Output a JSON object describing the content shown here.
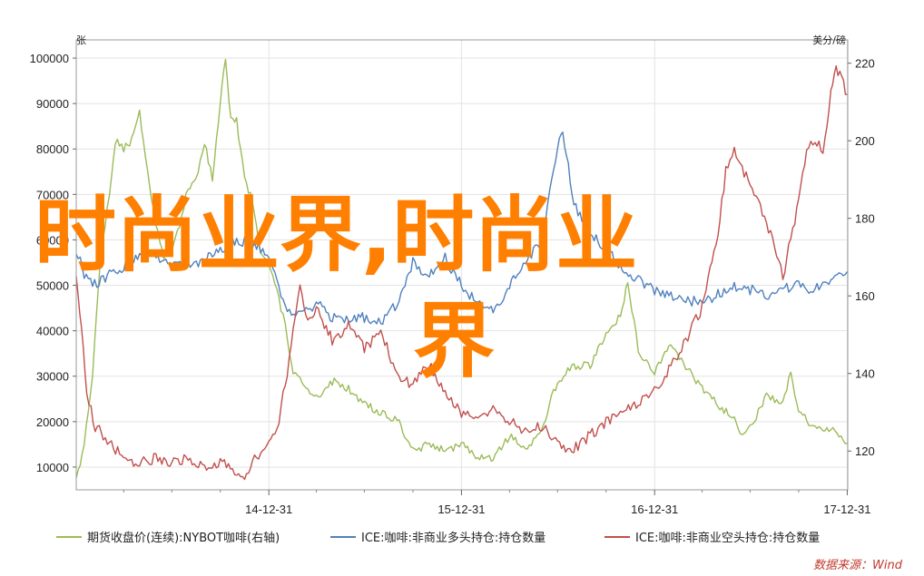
{
  "chart_data": {
    "type": "line",
    "left_axis_unit": "张",
    "right_axis_unit": "美分/磅",
    "left_ticks": [
      100000,
      90000,
      80000,
      70000,
      60000,
      50000,
      40000,
      30000,
      20000,
      10000
    ],
    "right_ticks": [
      220,
      200,
      180,
      160,
      140,
      120
    ],
    "ylim_left": [
      5000,
      104000
    ],
    "ylim_right": [
      110,
      226
    ],
    "x_ticks": [
      "14-12-31",
      "15-12-31",
      "16-12-31",
      "17-12-31"
    ],
    "x_range": [
      "2013-12-31",
      "2018-01-01"
    ],
    "grid": true,
    "legend_placement": "bottom",
    "source": "数据来源：Wind",
    "colors": {
      "price": "#9bbb59",
      "long": "#4f81bd",
      "short": "#c0504d"
    },
    "series": [
      {
        "name": "期货收盘价(连续):NYBOT咖啡(右轴)",
        "axis": "right",
        "color": "#9bbb59",
        "points": [
          [
            "2013-12-31",
            112
          ],
          [
            "2014-01-15",
            122
          ],
          [
            "2014-01-31",
            140
          ],
          [
            "2014-02-15",
            170
          ],
          [
            "2014-02-28",
            182
          ],
          [
            "2014-03-15",
            200
          ],
          [
            "2014-03-31",
            198
          ],
          [
            "2014-04-15",
            200
          ],
          [
            "2014-04-30",
            208
          ],
          [
            "2014-05-15",
            192
          ],
          [
            "2014-05-31",
            178
          ],
          [
            "2014-06-15",
            170
          ],
          [
            "2014-06-30",
            172
          ],
          [
            "2014-07-15",
            178
          ],
          [
            "2014-07-31",
            188
          ],
          [
            "2014-08-15",
            190
          ],
          [
            "2014-08-31",
            200
          ],
          [
            "2014-09-15",
            190
          ],
          [
            "2014-09-30",
            210
          ],
          [
            "2014-10-10",
            222
          ],
          [
            "2014-10-20",
            205
          ],
          [
            "2014-10-31",
            205
          ],
          [
            "2014-11-15",
            190
          ],
          [
            "2014-11-30",
            185
          ],
          [
            "2014-12-15",
            172
          ],
          [
            "2014-12-31",
            168
          ],
          [
            "2015-01-15",
            162
          ],
          [
            "2015-01-31",
            152
          ],
          [
            "2015-02-15",
            140
          ],
          [
            "2015-02-28",
            138
          ],
          [
            "2015-03-15",
            136
          ],
          [
            "2015-03-31",
            134
          ],
          [
            "2015-04-30",
            138
          ],
          [
            "2015-05-31",
            136
          ],
          [
            "2015-06-30",
            132
          ],
          [
            "2015-07-31",
            130
          ],
          [
            "2015-08-31",
            128
          ],
          [
            "2015-09-30",
            120
          ],
          [
            "2015-10-31",
            122
          ],
          [
            "2015-11-30",
            120
          ],
          [
            "2015-12-31",
            122
          ],
          [
            "2016-01-31",
            118
          ],
          [
            "2016-02-29",
            118
          ],
          [
            "2016-03-31",
            124
          ],
          [
            "2016-04-30",
            120
          ],
          [
            "2016-05-31",
            126
          ],
          [
            "2016-06-30",
            138
          ],
          [
            "2016-07-31",
            142
          ],
          [
            "2016-08-31",
            142
          ],
          [
            "2016-09-30",
            150
          ],
          [
            "2016-10-31",
            156
          ],
          [
            "2016-11-10",
            164
          ],
          [
            "2016-11-30",
            146
          ],
          [
            "2016-12-31",
            140
          ],
          [
            "2017-01-31",
            148
          ],
          [
            "2017-02-28",
            142
          ],
          [
            "2017-03-31",
            136
          ],
          [
            "2017-04-30",
            132
          ],
          [
            "2017-05-31",
            128
          ],
          [
            "2017-06-15",
            124
          ],
          [
            "2017-06-30",
            126
          ],
          [
            "2017-07-31",
            134
          ],
          [
            "2017-08-31",
            132
          ],
          [
            "2017-09-15",
            140
          ],
          [
            "2017-09-30",
            130
          ],
          [
            "2017-10-31",
            126
          ],
          [
            "2017-11-30",
            126
          ],
          [
            "2017-12-31",
            122
          ]
        ]
      },
      {
        "name": "ICE:咖啡:非商业多头持仓:持仓数量",
        "axis": "left",
        "color": "#4f81bd",
        "points": [
          [
            "2013-12-31",
            58000
          ],
          [
            "2014-01-15",
            52000
          ],
          [
            "2014-01-31",
            50000
          ],
          [
            "2014-02-28",
            52000
          ],
          [
            "2014-03-31",
            54000
          ],
          [
            "2014-04-30",
            57000
          ],
          [
            "2014-05-31",
            56000
          ],
          [
            "2014-06-30",
            55000
          ],
          [
            "2014-07-31",
            54000
          ],
          [
            "2014-08-31",
            56000
          ],
          [
            "2014-09-30",
            58000
          ],
          [
            "2014-10-31",
            60000
          ],
          [
            "2014-11-30",
            59000
          ],
          [
            "2014-12-31",
            57000
          ],
          [
            "2015-01-15",
            52000
          ],
          [
            "2015-01-31",
            45000
          ],
          [
            "2015-02-28",
            44000
          ],
          [
            "2015-03-31",
            46000
          ],
          [
            "2015-04-30",
            43000
          ],
          [
            "2015-05-31",
            42000
          ],
          [
            "2015-06-30",
            43000
          ],
          [
            "2015-07-31",
            42000
          ],
          [
            "2015-08-31",
            46000
          ],
          [
            "2015-09-30",
            55000
          ],
          [
            "2015-10-31",
            52000
          ],
          [
            "2015-11-30",
            56000
          ],
          [
            "2015-12-31",
            50000
          ],
          [
            "2016-01-31",
            46000
          ],
          [
            "2016-02-29",
            44000
          ],
          [
            "2016-03-31",
            50000
          ],
          [
            "2016-04-30",
            55000
          ],
          [
            "2016-05-31",
            60000
          ],
          [
            "2016-06-15",
            70000
          ],
          [
            "2016-06-30",
            80000
          ],
          [
            "2016-07-10",
            84000
          ],
          [
            "2016-07-31",
            68000
          ],
          [
            "2016-08-31",
            62000
          ],
          [
            "2016-09-30",
            58000
          ],
          [
            "2016-10-31",
            54000
          ],
          [
            "2016-11-30",
            51000
          ],
          [
            "2016-12-31",
            49000
          ],
          [
            "2017-01-31",
            48000
          ],
          [
            "2017-02-28",
            47000
          ],
          [
            "2017-03-31",
            46000
          ],
          [
            "2017-04-30",
            48000
          ],
          [
            "2017-05-31",
            50000
          ],
          [
            "2017-06-30",
            49000
          ],
          [
            "2017-07-31",
            48000
          ],
          [
            "2017-08-31",
            49000
          ],
          [
            "2017-09-30",
            50000
          ],
          [
            "2017-10-31",
            49000
          ],
          [
            "2017-11-30",
            51000
          ],
          [
            "2017-12-31",
            53000
          ]
        ]
      },
      {
        "name": "ICE:咖啡:非商业空头持仓:持仓数量",
        "axis": "left",
        "color": "#c0504d",
        "points": [
          [
            "2013-12-31",
            52000
          ],
          [
            "2014-01-10",
            40000
          ],
          [
            "2014-01-20",
            26000
          ],
          [
            "2014-02-05",
            19000
          ],
          [
            "2014-02-28",
            16000
          ],
          [
            "2014-03-31",
            12000
          ],
          [
            "2014-04-30",
            11000
          ],
          [
            "2014-05-31",
            12000
          ],
          [
            "2014-06-30",
            11000
          ],
          [
            "2014-07-31",
            12000
          ],
          [
            "2014-08-31",
            10000
          ],
          [
            "2014-09-30",
            11000
          ],
          [
            "2014-10-31",
            9000
          ],
          [
            "2014-11-15",
            8000
          ],
          [
            "2014-11-30",
            11000
          ],
          [
            "2014-12-31",
            15000
          ],
          [
            "2015-01-15",
            18000
          ],
          [
            "2015-01-31",
            28000
          ],
          [
            "2015-02-15",
            40000
          ],
          [
            "2015-02-28",
            50000
          ],
          [
            "2015-03-15",
            42000
          ],
          [
            "2015-03-31",
            45000
          ],
          [
            "2015-04-30",
            38000
          ],
          [
            "2015-05-31",
            41000
          ],
          [
            "2015-06-30",
            36000
          ],
          [
            "2015-07-31",
            40000
          ],
          [
            "2015-08-31",
            30000
          ],
          [
            "2015-09-30",
            28000
          ],
          [
            "2015-10-31",
            33000
          ],
          [
            "2015-11-30",
            26000
          ],
          [
            "2015-12-31",
            22000
          ],
          [
            "2016-01-31",
            20000
          ],
          [
            "2016-02-29",
            23000
          ],
          [
            "2016-03-31",
            20000
          ],
          [
            "2016-04-30",
            18000
          ],
          [
            "2016-05-31",
            19000
          ],
          [
            "2016-06-30",
            15000
          ],
          [
            "2016-07-31",
            14000
          ],
          [
            "2016-08-31",
            17000
          ],
          [
            "2016-09-30",
            20000
          ],
          [
            "2016-10-31",
            22000
          ],
          [
            "2016-11-30",
            24000
          ],
          [
            "2016-12-31",
            27000
          ],
          [
            "2017-01-31",
            32000
          ],
          [
            "2017-02-28",
            38000
          ],
          [
            "2017-03-31",
            45000
          ],
          [
            "2017-04-30",
            62000
          ],
          [
            "2017-05-15",
            75000
          ],
          [
            "2017-05-31",
            80000
          ],
          [
            "2017-06-30",
            72000
          ],
          [
            "2017-07-31",
            64000
          ],
          [
            "2017-08-31",
            52000
          ],
          [
            "2017-09-30",
            68000
          ],
          [
            "2017-10-15",
            80000
          ],
          [
            "2017-10-31",
            82000
          ],
          [
            "2017-11-15",
            80000
          ],
          [
            "2017-11-30",
            92000
          ],
          [
            "2017-12-10",
            98000
          ],
          [
            "2017-12-31",
            92000
          ]
        ]
      }
    ]
  },
  "watermark": {
    "line1": "时尚业界,时尚业",
    "line2": "界"
  }
}
